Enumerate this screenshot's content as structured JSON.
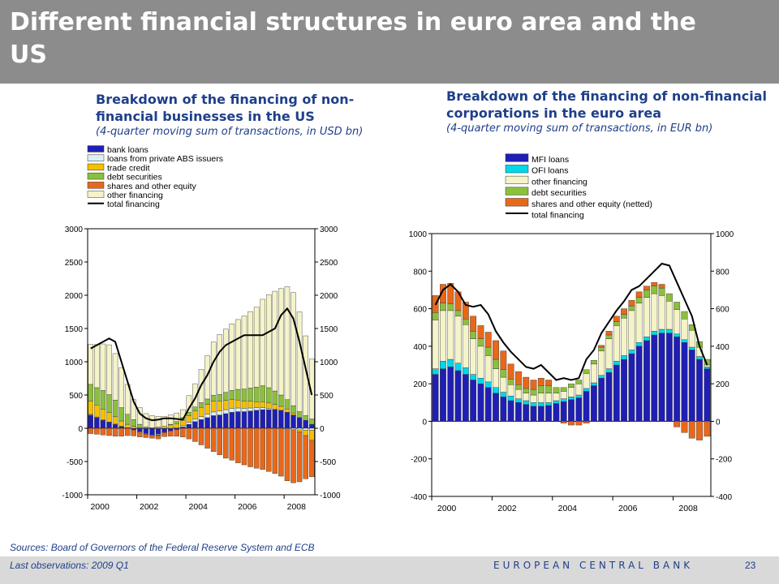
{
  "slide": {
    "title": "Different financial structures in euro area and the US",
    "sources": "Sources: Board of Governors of the Federal Reserve System and ECB",
    "last_obs": "Last observations: 2009 Q1",
    "org": "EUROPEAN CENTRAL BANK",
    "page": "23"
  },
  "chart_data": [
    {
      "type": "bar",
      "stacked": true,
      "title": "Breakdown of the financing of non-financial businesses in the US",
      "subtitle": "(4-quarter moving sum of transactions, in USD bn)",
      "ylim": [
        -1000,
        3000
      ],
      "yticks": [
        -1000,
        -500,
        0,
        500,
        1000,
        1500,
        2000,
        2500,
        3000
      ],
      "ytick_labels": [
        "-1000",
        "-500",
        "0",
        "500",
        "1000",
        "1500",
        "2000",
        "2500",
        "3000"
      ],
      "xticks": [
        "2000",
        "2002",
        "2004",
        "2006",
        "2008"
      ],
      "categories": [
        "2000Q1",
        "2000Q2",
        "2000Q3",
        "2000Q4",
        "2001Q1",
        "2001Q2",
        "2001Q3",
        "2001Q4",
        "2002Q1",
        "2002Q2",
        "2002Q3",
        "2002Q4",
        "2003Q1",
        "2003Q2",
        "2003Q3",
        "2003Q4",
        "2004Q1",
        "2004Q2",
        "2004Q3",
        "2004Q4",
        "2005Q1",
        "2005Q2",
        "2005Q3",
        "2005Q4",
        "2006Q1",
        "2006Q2",
        "2006Q3",
        "2006Q4",
        "2007Q1",
        "2007Q2",
        "2007Q3",
        "2007Q4",
        "2008Q1",
        "2008Q2",
        "2008Q3",
        "2008Q4",
        "2009Q1"
      ],
      "series": [
        {
          "name": "bank loans",
          "color": "#1f1fb4",
          "values": [
            200,
            160,
            120,
            90,
            60,
            30,
            10,
            -20,
            -50,
            -80,
            -100,
            -90,
            -60,
            -40,
            -20,
            20,
            60,
            100,
            130,
            160,
            190,
            200,
            220,
            240,
            250,
            250,
            260,
            270,
            280,
            280,
            280,
            270,
            240,
            200,
            160,
            120,
            60
          ]
        },
        {
          "name": "loans from private ABS issuers",
          "color": "#d9f1f5",
          "values": [
            10,
            10,
            8,
            5,
            3,
            0,
            0,
            -5,
            -10,
            -10,
            -10,
            -10,
            -5,
            0,
            10,
            20,
            30,
            40,
            45,
            50,
            55,
            60,
            60,
            60,
            55,
            50,
            45,
            40,
            30,
            20,
            10,
            0,
            -10,
            -20,
            -25,
            -30,
            -30
          ]
        },
        {
          "name": "trade credit",
          "color": "#f5c000",
          "values": [
            200,
            180,
            160,
            140,
            110,
            80,
            50,
            30,
            10,
            0,
            10,
            20,
            30,
            50,
            60,
            80,
            100,
            120,
            140,
            150,
            160,
            150,
            140,
            130,
            120,
            110,
            100,
            90,
            90,
            80,
            70,
            60,
            50,
            30,
            -30,
            -80,
            -150
          ]
        },
        {
          "name": "debt securities",
          "color": "#8cbf3c",
          "values": [
            250,
            260,
            280,
            270,
            250,
            200,
            150,
            100,
            50,
            20,
            0,
            -10,
            0,
            10,
            30,
            40,
            50,
            60,
            70,
            80,
            90,
            100,
            120,
            140,
            160,
            180,
            200,
            220,
            240,
            230,
            200,
            170,
            140,
            110,
            90,
            70,
            80
          ]
        },
        {
          "name": "shares and other equity",
          "color": "#e8681a",
          "values": [
            -80,
            -90,
            -100,
            -110,
            -120,
            -120,
            -110,
            -90,
            -70,
            -50,
            -40,
            -50,
            -60,
            -80,
            -100,
            -130,
            -160,
            -200,
            -250,
            -300,
            -350,
            -400,
            -450,
            -480,
            -520,
            -550,
            -580,
            -600,
            -620,
            -650,
            -680,
            -720,
            -780,
            -800,
            -750,
            -650,
            -550
          ]
        },
        {
          "name": "other financing",
          "color": "#f5f3c8",
          "values": [
            600,
            650,
            700,
            750,
            700,
            600,
            450,
            300,
            250,
            200,
            180,
            160,
            150,
            140,
            130,
            120,
            250,
            350,
            500,
            650,
            800,
            900,
            950,
            1000,
            1050,
            1100,
            1150,
            1200,
            1300,
            1400,
            1500,
            1600,
            1700,
            1700,
            1500,
            1200,
            900
          ]
        }
      ],
      "total_financing": {
        "name": "total financing",
        "color": "#000000",
        "values": [
          1200,
          1250,
          1300,
          1350,
          1300,
          1000,
          700,
          400,
          220,
          150,
          120,
          130,
          150,
          150,
          140,
          130,
          300,
          450,
          650,
          800,
          1000,
          1150,
          1250,
          1300,
          1350,
          1400,
          1400,
          1400,
          1400,
          1450,
          1500,
          1700,
          1800,
          1650,
          1300,
          900,
          500
        ]
      },
      "legend": [
        "bank loans",
        "loans from private ABS issuers",
        "trade credit",
        "debt securities",
        "shares and other equity",
        "other financing",
        "total financing"
      ]
    },
    {
      "type": "bar",
      "stacked": true,
      "title": "Breakdown of the financing of non-financial corporations in the euro area",
      "subtitle": "(4-quarter moving sum of transactions, in EUR bn)",
      "ylim": [
        -400,
        1000
      ],
      "yticks": [
        -400,
        -200,
        0,
        200,
        400,
        600,
        800,
        1000
      ],
      "ytick_labels": [
        "-400",
        "-200",
        "0",
        "200",
        "400",
        "600",
        "800",
        "1000"
      ],
      "xticks": [
        "2000",
        "2002",
        "2004",
        "2006",
        "2008"
      ],
      "categories": [
        "2000Q1",
        "2000Q2",
        "2000Q3",
        "2000Q4",
        "2001Q1",
        "2001Q2",
        "2001Q3",
        "2001Q4",
        "2002Q1",
        "2002Q2",
        "2002Q3",
        "2002Q4",
        "2003Q1",
        "2003Q2",
        "2003Q3",
        "2003Q4",
        "2004Q1",
        "2004Q2",
        "2004Q3",
        "2004Q4",
        "2005Q1",
        "2005Q2",
        "2005Q3",
        "2005Q4",
        "2006Q1",
        "2006Q2",
        "2006Q3",
        "2006Q4",
        "2007Q1",
        "2007Q2",
        "2007Q3",
        "2007Q4",
        "2008Q1",
        "2008Q2",
        "2008Q3",
        "2008Q4",
        "2009Q1"
      ],
      "series": [
        {
          "name": "MFI loans",
          "color": "#1f1fb4",
          "values": [
            250,
            280,
            290,
            270,
            250,
            220,
            200,
            180,
            150,
            130,
            110,
            100,
            90,
            80,
            80,
            85,
            95,
            105,
            115,
            125,
            160,
            190,
            230,
            260,
            300,
            330,
            360,
            400,
            430,
            460,
            470,
            470,
            450,
            420,
            380,
            330,
            280
          ]
        },
        {
          "name": "OFI loans",
          "color": "#00d8e8",
          "values": [
            30,
            40,
            40,
            40,
            35,
            30,
            30,
            30,
            30,
            25,
            25,
            20,
            20,
            20,
            20,
            15,
            15,
            15,
            15,
            15,
            15,
            15,
            15,
            20,
            20,
            20,
            20,
            20,
            20,
            20,
            20,
            20,
            15,
            15,
            15,
            15,
            10
          ]
        },
        {
          "name": "other financing",
          "color": "#f5f3c8",
          "values": [
            260,
            270,
            260,
            250,
            230,
            190,
            170,
            140,
            100,
            80,
            60,
            50,
            40,
            40,
            50,
            50,
            40,
            40,
            50,
            60,
            80,
            100,
            130,
            160,
            190,
            200,
            210,
            210,
            210,
            200,
            180,
            150,
            130,
            110,
            90,
            50,
            10
          ]
        },
        {
          "name": "debt securities",
          "color": "#8cbf3c",
          "values": [
            40,
            40,
            35,
            30,
            30,
            40,
            40,
            45,
            50,
            40,
            30,
            25,
            25,
            30,
            40,
            40,
            30,
            20,
            20,
            20,
            20,
            20,
            20,
            20,
            20,
            20,
            25,
            30,
            40,
            40,
            40,
            40,
            40,
            40,
            30,
            30,
            30
          ]
        },
        {
          "name": "shares and other equity (netted)",
          "color": "#e8681a",
          "values": [
            90,
            100,
            110,
            100,
            90,
            80,
            70,
            80,
            100,
            100,
            80,
            70,
            60,
            50,
            40,
            30,
            0,
            -10,
            -20,
            -20,
            -10,
            0,
            10,
            20,
            30,
            30,
            30,
            30,
            20,
            20,
            20,
            0,
            -30,
            -60,
            -90,
            -100,
            -80
          ]
        }
      ],
      "total_financing": {
        "name": "total financing",
        "color": "#000000",
        "values": [
          620,
          700,
          730,
          690,
          620,
          610,
          620,
          570,
          480,
          420,
          370,
          330,
          290,
          280,
          300,
          260,
          220,
          230,
          220,
          230,
          330,
          380,
          470,
          530,
          590,
          640,
          700,
          720,
          760,
          800,
          840,
          830,
          740,
          650,
          560,
          400,
          300
        ]
      },
      "legend": [
        "MFI loans",
        "OFI loans",
        "other financing",
        "debt securities",
        "shares and other equity (netted)",
        "total financing"
      ]
    }
  ]
}
